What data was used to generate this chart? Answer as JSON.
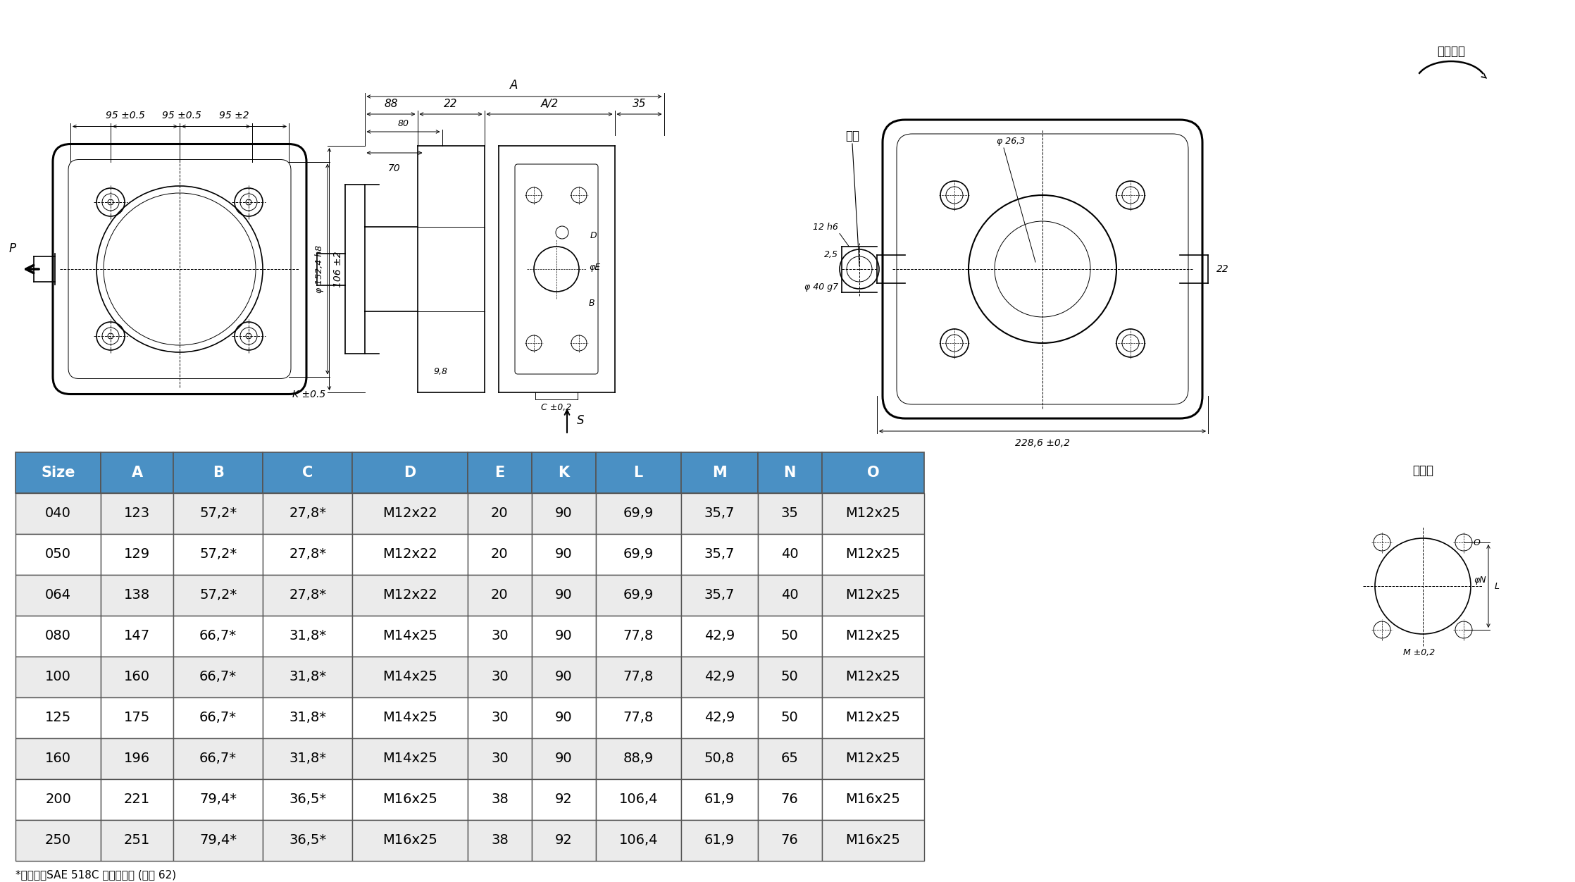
{
  "table_headers": [
    "Size",
    "A",
    "B",
    "C",
    "D",
    "E",
    "K",
    "L",
    "M",
    "N",
    "O"
  ],
  "table_rows": [
    [
      "040",
      "123",
      "57,2*",
      "27,8*",
      "M12x22",
      "20",
      "90",
      "69,9",
      "35,7",
      "35",
      "M12x25"
    ],
    [
      "050",
      "129",
      "57,2*",
      "27,8*",
      "M12x22",
      "20",
      "90",
      "69,9",
      "35,7",
      "40",
      "M12x25"
    ],
    [
      "064",
      "138",
      "57,2*",
      "27,8*",
      "M12x22",
      "20",
      "90",
      "69,9",
      "35,7",
      "40",
      "M12x25"
    ],
    [
      "080",
      "147",
      "66,7*",
      "31,8*",
      "M14x25",
      "30",
      "90",
      "77,8",
      "42,9",
      "50",
      "M12x25"
    ],
    [
      "100",
      "160",
      "66,7*",
      "31,8*",
      "M14x25",
      "30",
      "90",
      "77,8",
      "42,9",
      "50",
      "M12x25"
    ],
    [
      "125",
      "175",
      "66,7*",
      "31,8*",
      "M14x25",
      "30",
      "90",
      "77,8",
      "42,9",
      "50",
      "M12x25"
    ],
    [
      "160",
      "196",
      "66,7*",
      "31,8*",
      "M14x25",
      "30",
      "90",
      "88,9",
      "50,8",
      "65",
      "M12x25"
    ],
    [
      "200",
      "221",
      "79,4*",
      "36,5*",
      "M16x25",
      "38",
      "92",
      "106,4",
      "61,9",
      "76",
      "M16x25"
    ],
    [
      "250",
      "251",
      "79,4*",
      "36,5*",
      "M16x25",
      "38",
      "92",
      "106,4",
      "61,9",
      "76",
      "M16x25"
    ]
  ],
  "header_bg": "#4a90c4",
  "header_fg": "#ffffff",
  "row_bg_odd": "#ebebeb",
  "row_bg_even": "#ffffff",
  "table_border": "#555555",
  "footnote": "*出油口：SAE 518C 高压系列用 (编号 62)",
  "bg_color": "#ffffff",
  "dim_color": "#000000",
  "lc": "#000000",
  "label_rotation": "回转方向",
  "label_shaft": "轴心",
  "label_inlet": "入油口"
}
